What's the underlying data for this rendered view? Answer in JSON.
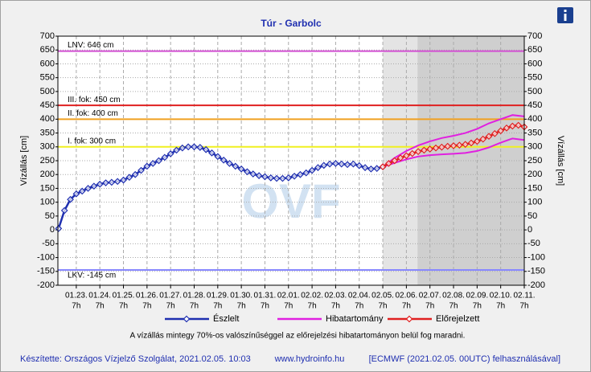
{
  "chart_data": {
    "type": "hydrograph",
    "title": "Túr - Garbolc",
    "ylabel": "Vízállás [cm]",
    "y2label": "Vízállás [cm]",
    "watermark": "OVF",
    "note": "A vízállás mintegy 70%-os valószínűséggel az előrejelzési hibatartományon belül fog maradni.",
    "footer": [
      "Készítette: Országos Vízjelző Szolgálat, 2021.02.05. 10:03",
      "www.hydroinfo.hu",
      "[ECMWF (2021.02.05. 00UTC) felhasználásával]"
    ],
    "xlim": [
      -0.78,
      19
    ],
    "xticks": [
      {
        "value": 0,
        "label": "01.23."
      },
      {
        "value": 1,
        "label": "01.24."
      },
      {
        "value": 2,
        "label": "01.25."
      },
      {
        "value": 3,
        "label": "01.26."
      },
      {
        "value": 4,
        "label": "01.27."
      },
      {
        "value": 5,
        "label": "01.28."
      },
      {
        "value": 6,
        "label": "01.29."
      },
      {
        "value": 7,
        "label": "01.30."
      },
      {
        "value": 8,
        "label": "01.31."
      },
      {
        "value": 9,
        "label": "02.01."
      },
      {
        "value": 10,
        "label": "02.02."
      },
      {
        "value": 11,
        "label": "02.03."
      },
      {
        "value": 12,
        "label": "02.04."
      },
      {
        "value": 13,
        "label": "02.05."
      },
      {
        "value": 14,
        "label": "02.06."
      },
      {
        "value": 15,
        "label": "02.07."
      },
      {
        "value": 16,
        "label": "02.08."
      },
      {
        "value": 17,
        "label": "02.09."
      },
      {
        "value": 18,
        "label": "02.10."
      },
      {
        "value": 19,
        "label": "02.11."
      }
    ],
    "xtick_hour_labels": [
      "7h",
      "7h",
      "7h",
      "7h",
      "7h",
      "7h",
      "7h",
      "7h",
      "7h",
      "7h",
      "7h",
      "7h",
      "7h",
      "7h",
      "7h",
      "7h",
      "7h",
      "7h",
      "7h",
      "7h"
    ],
    "ylim": [
      -200,
      700
    ],
    "yticks": [
      -200,
      -150,
      -100,
      -50,
      0,
      50,
      100,
      150,
      200,
      250,
      300,
      350,
      400,
      450,
      500,
      550,
      600,
      650,
      700
    ],
    "y2lim": [
      -200,
      700
    ],
    "y2ticks": [
      -200,
      -150,
      -100,
      -50,
      0,
      50,
      100,
      150,
      200,
      250,
      300,
      350,
      400,
      450,
      500,
      550,
      600,
      650,
      700
    ],
    "grid": true,
    "shaded_regions": [
      {
        "xlim": [
          13,
          14.47
        ],
        "color": "#e4e4e4"
      },
      {
        "xlim": [
          14.47,
          19
        ],
        "color": "#cfcfcf"
      }
    ],
    "reference_lines": [
      {
        "label": "LNV: 646 cm",
        "value": 646,
        "color": "#d24fd2"
      },
      {
        "label": "III. fok: 450 cm",
        "value": 450,
        "color": "#e02020"
      },
      {
        "label": "II. fok: 400 cm",
        "value": 400,
        "color": "#f0a020"
      },
      {
        "label": "I. fok: 300 cm",
        "value": 300,
        "color": "#f0f020"
      },
      {
        "label": "LKV: -145 cm",
        "value": -145,
        "color": "#8888ff"
      }
    ],
    "series": [
      {
        "name": "Észlelt",
        "kind": "line",
        "color": "#1f2fb0",
        "x": [
          -0.75,
          -0.5,
          -0.25,
          0,
          0.25,
          0.5,
          0.75,
          1,
          1.25,
          1.5,
          1.75,
          2,
          2.25,
          2.5,
          2.75,
          3,
          3.25,
          3.5,
          3.75,
          4,
          4.25,
          4.5,
          4.75,
          5,
          5.25,
          5.5,
          5.75,
          6,
          6.25,
          6.5,
          6.75,
          7,
          7.25,
          7.5,
          7.75,
          8,
          8.25,
          8.5,
          8.75,
          9,
          9.25,
          9.5,
          9.75,
          10,
          10.25,
          10.5,
          10.75,
          11,
          11.25,
          11.5,
          11.75,
          12,
          12.25,
          12.5,
          12.75,
          13
        ],
        "values": [
          5,
          70,
          110,
          130,
          140,
          150,
          158,
          165,
          170,
          172,
          175,
          180,
          190,
          200,
          215,
          230,
          240,
          250,
          262,
          275,
          288,
          296,
          300,
          300,
          298,
          290,
          278,
          265,
          252,
          240,
          230,
          220,
          210,
          202,
          196,
          192,
          188,
          186,
          186,
          188,
          194,
          200,
          206,
          215,
          225,
          233,
          238,
          240,
          238,
          236,
          238,
          232,
          225,
          220,
          222,
          228
        ]
      },
      {
        "name": "Hibatartomány",
        "kind": "band",
        "color": "#e020e0",
        "x": [
          13,
          13.5,
          14,
          14.5,
          15,
          15.5,
          16,
          16.5,
          17,
          17.5,
          18,
          18.5,
          19
        ],
        "values": [
          228,
          260,
          285,
          305,
          320,
          332,
          340,
          350,
          365,
          385,
          400,
          415,
          410
        ],
        "lower": [
          228,
          242,
          255,
          265,
          270,
          273,
          275,
          278,
          285,
          298,
          315,
          330,
          325
        ]
      },
      {
        "name": "Előrejelzett",
        "kind": "line",
        "color": "#e02020",
        "x": [
          13,
          13.25,
          13.5,
          13.75,
          14,
          14.25,
          14.5,
          14.75,
          15,
          15.25,
          15.5,
          15.75,
          16,
          16.25,
          16.5,
          16.75,
          17,
          17.25,
          17.5,
          17.75,
          18,
          18.25,
          18.5,
          18.75,
          19
        ],
        "values": [
          228,
          240,
          250,
          260,
          268,
          276,
          283,
          288,
          292,
          296,
          299,
          302,
          304,
          306,
          309,
          314,
          320,
          328,
          338,
          348,
          358,
          368,
          375,
          378,
          372
        ]
      }
    ]
  }
}
